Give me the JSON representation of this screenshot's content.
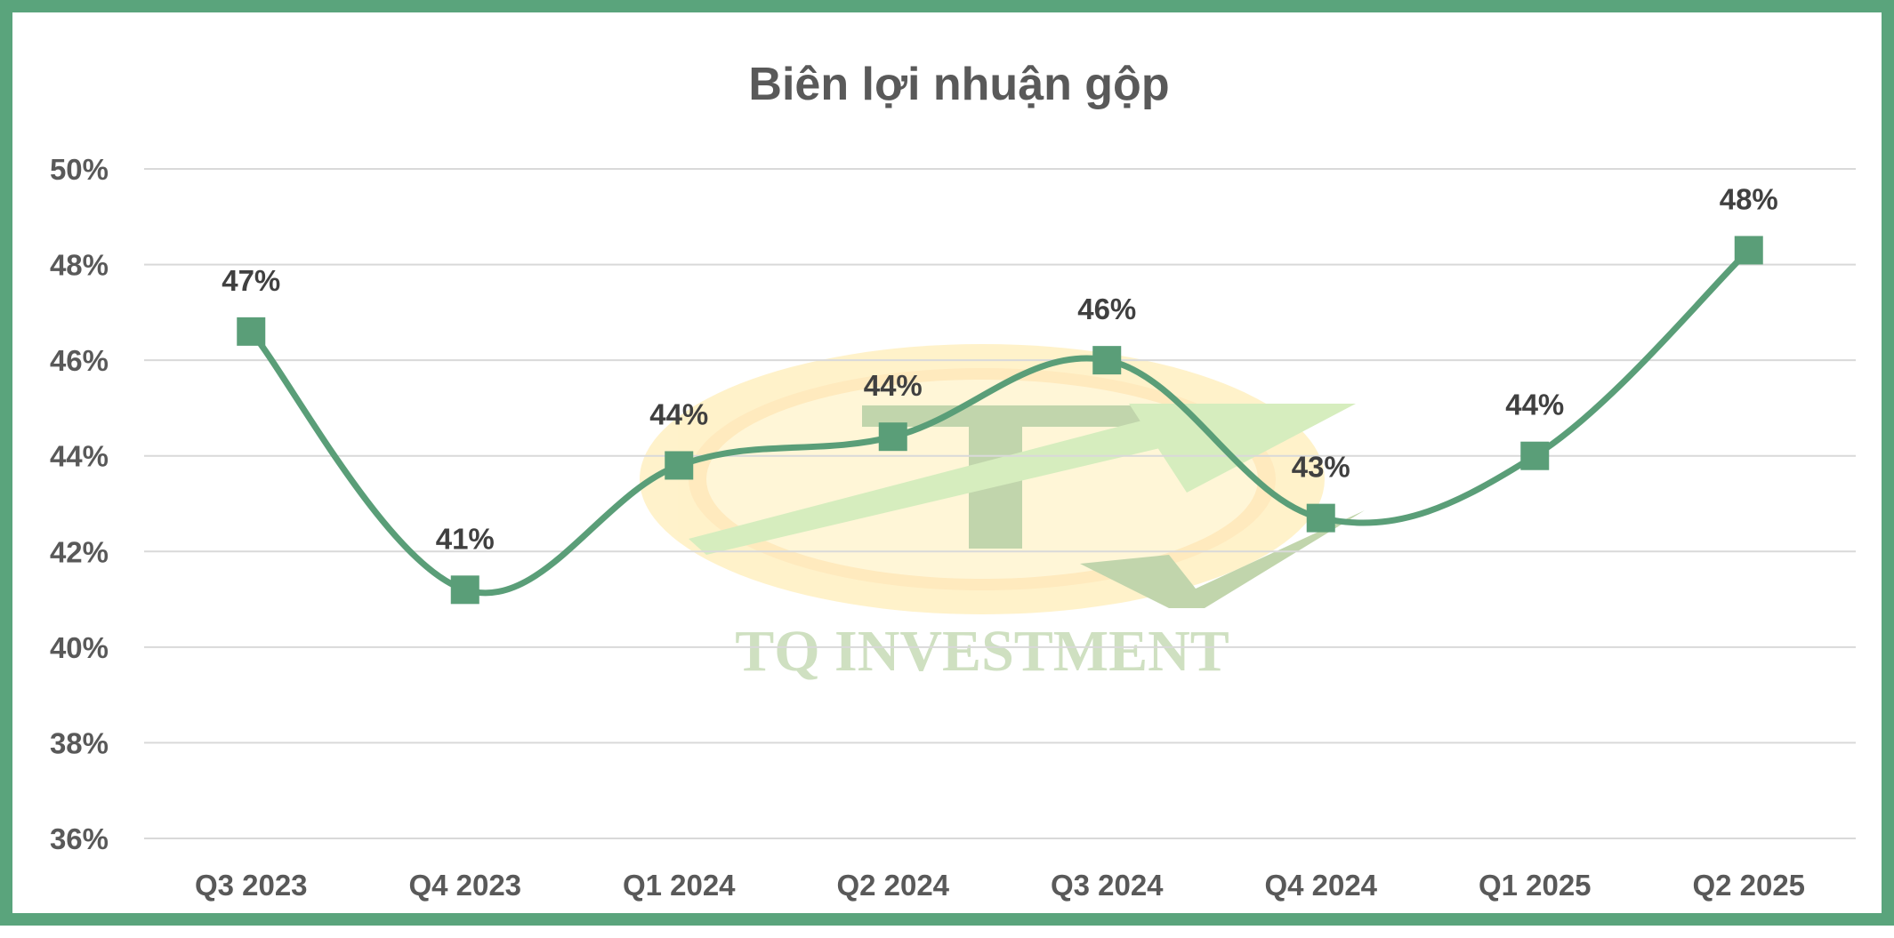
{
  "colors": {
    "frame": "#5aa47c",
    "line": "#5a9e78",
    "marker": "#5a9e78",
    "grid": "#d9d9d9",
    "axis_text": "#595959",
    "label_text": "#404040"
  },
  "watermark": {
    "text": "TQ INVESTMENT",
    "icon": "tq-investment-logo-icon"
  },
  "chart_data": {
    "type": "line",
    "title": "Biên lợi nhuận gộp",
    "categories": [
      "Q3 2023",
      "Q4 2023",
      "Q1 2024",
      "Q2 2024",
      "Q3 2024",
      "Q4 2024",
      "Q1 2025",
      "Q2 2025"
    ],
    "values": [
      46.6,
      41.2,
      43.8,
      44.4,
      46.0,
      42.7,
      44.0,
      48.3
    ],
    "data_labels": [
      "47%",
      "41%",
      "44%",
      "44%",
      "46%",
      "43%",
      "44%",
      "48%"
    ],
    "yticks": [
      "36%",
      "38%",
      "40%",
      "42%",
      "44%",
      "46%",
      "48%",
      "50%"
    ],
    "ylim": [
      36,
      50
    ],
    "ytick_step": 2,
    "xlabel": "",
    "ylabel": "",
    "grid": true,
    "smooth": true,
    "marker": "square"
  }
}
